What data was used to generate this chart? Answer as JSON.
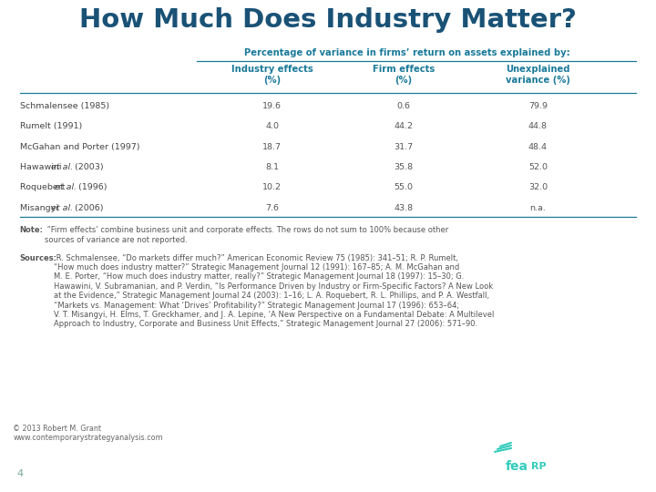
{
  "title": "How Much Does Industry Matter?",
  "subtitle": "Percentage of variance in firms’ return on assets explained by:",
  "col_headers": [
    "Industry effects\n(%)",
    "Firm effects\n(%)",
    "Unexplained\nvariance (%)"
  ],
  "rows": [
    [
      "Schmalensee (1985)",
      "19.6",
      "0.6",
      "79.9"
    ],
    [
      "Rumelt (1991)",
      "4.0",
      "44.2",
      "44.8"
    ],
    [
      "McGahan and Porter (1997)",
      "18.7",
      "31.7",
      "48.4"
    ],
    [
      "Hawawini et al. (2003)",
      "8.1",
      "35.8",
      "52.0"
    ],
    [
      "Roquebert et al. (1996)",
      "10.2",
      "55.0",
      "32.0"
    ],
    [
      "Misangyi et al. (2006)",
      "7.6",
      "43.8",
      "n.a."
    ]
  ],
  "note_bold": "Note:",
  "note_rest": " “Firm effects’ combine business unit and corporate effects. The rows do not sum to 100% because other\nsources of variance are not reported.",
  "sources_bold": "Sources:",
  "sources_rest": " R. Schmalensee, “Do markets differ much?” American Economic Review 75 (1985): 341–51; R. P. Rumelt,\n“How much does industry matter?” Strategic Management Journal 12 (1991): 167–85; A. M. McGahan and\nM. E. Porter, “How much does industry matter, really?” Strategic Management Journal 18 (1997): 15–30; G.\nHawawini, V. Subramanian, and P. Verdin, “Is Performance Driven by Industry or Firm-Specific Factors? A New Look\nat the Evidence,” Strategic Management Journal 24 (2003): 1–16; L. A. Roquebert, R. L. Phillips, and P. A. Westfall,\n“Markets vs. Management: What ‘Drives’ Profitability?” Strategic Management Journal 17 (1996): 653–64;\nV. T. Misangyi, H. Elms, T. Greckhamer, and J. A. Lepine, ‘A New Perspective on a Fundamental Debate: A Multilevel\nApproach to Industry, Corporate and Business Unit Effects,” Strategic Management Journal 27 (2006): 571–90.",
  "copyright": "© 2013 Robert M. Grant\nwww.contemporarystrategyanalysis.com",
  "page_number": "4",
  "bg_color_main": "#ffffff",
  "bg_color_footer": "#1b3a32",
  "title_color": "#1a5276",
  "subtitle_color": "#1a7a9a",
  "col_header_color": "#1a7a9a",
  "row_label_color": "#444444",
  "value_color": "#555555",
  "note_color": "#555555",
  "line_color": "#1a7a9a",
  "footer_num_color": "#7aaa99",
  "footer_logo_color": "#33ccbb"
}
